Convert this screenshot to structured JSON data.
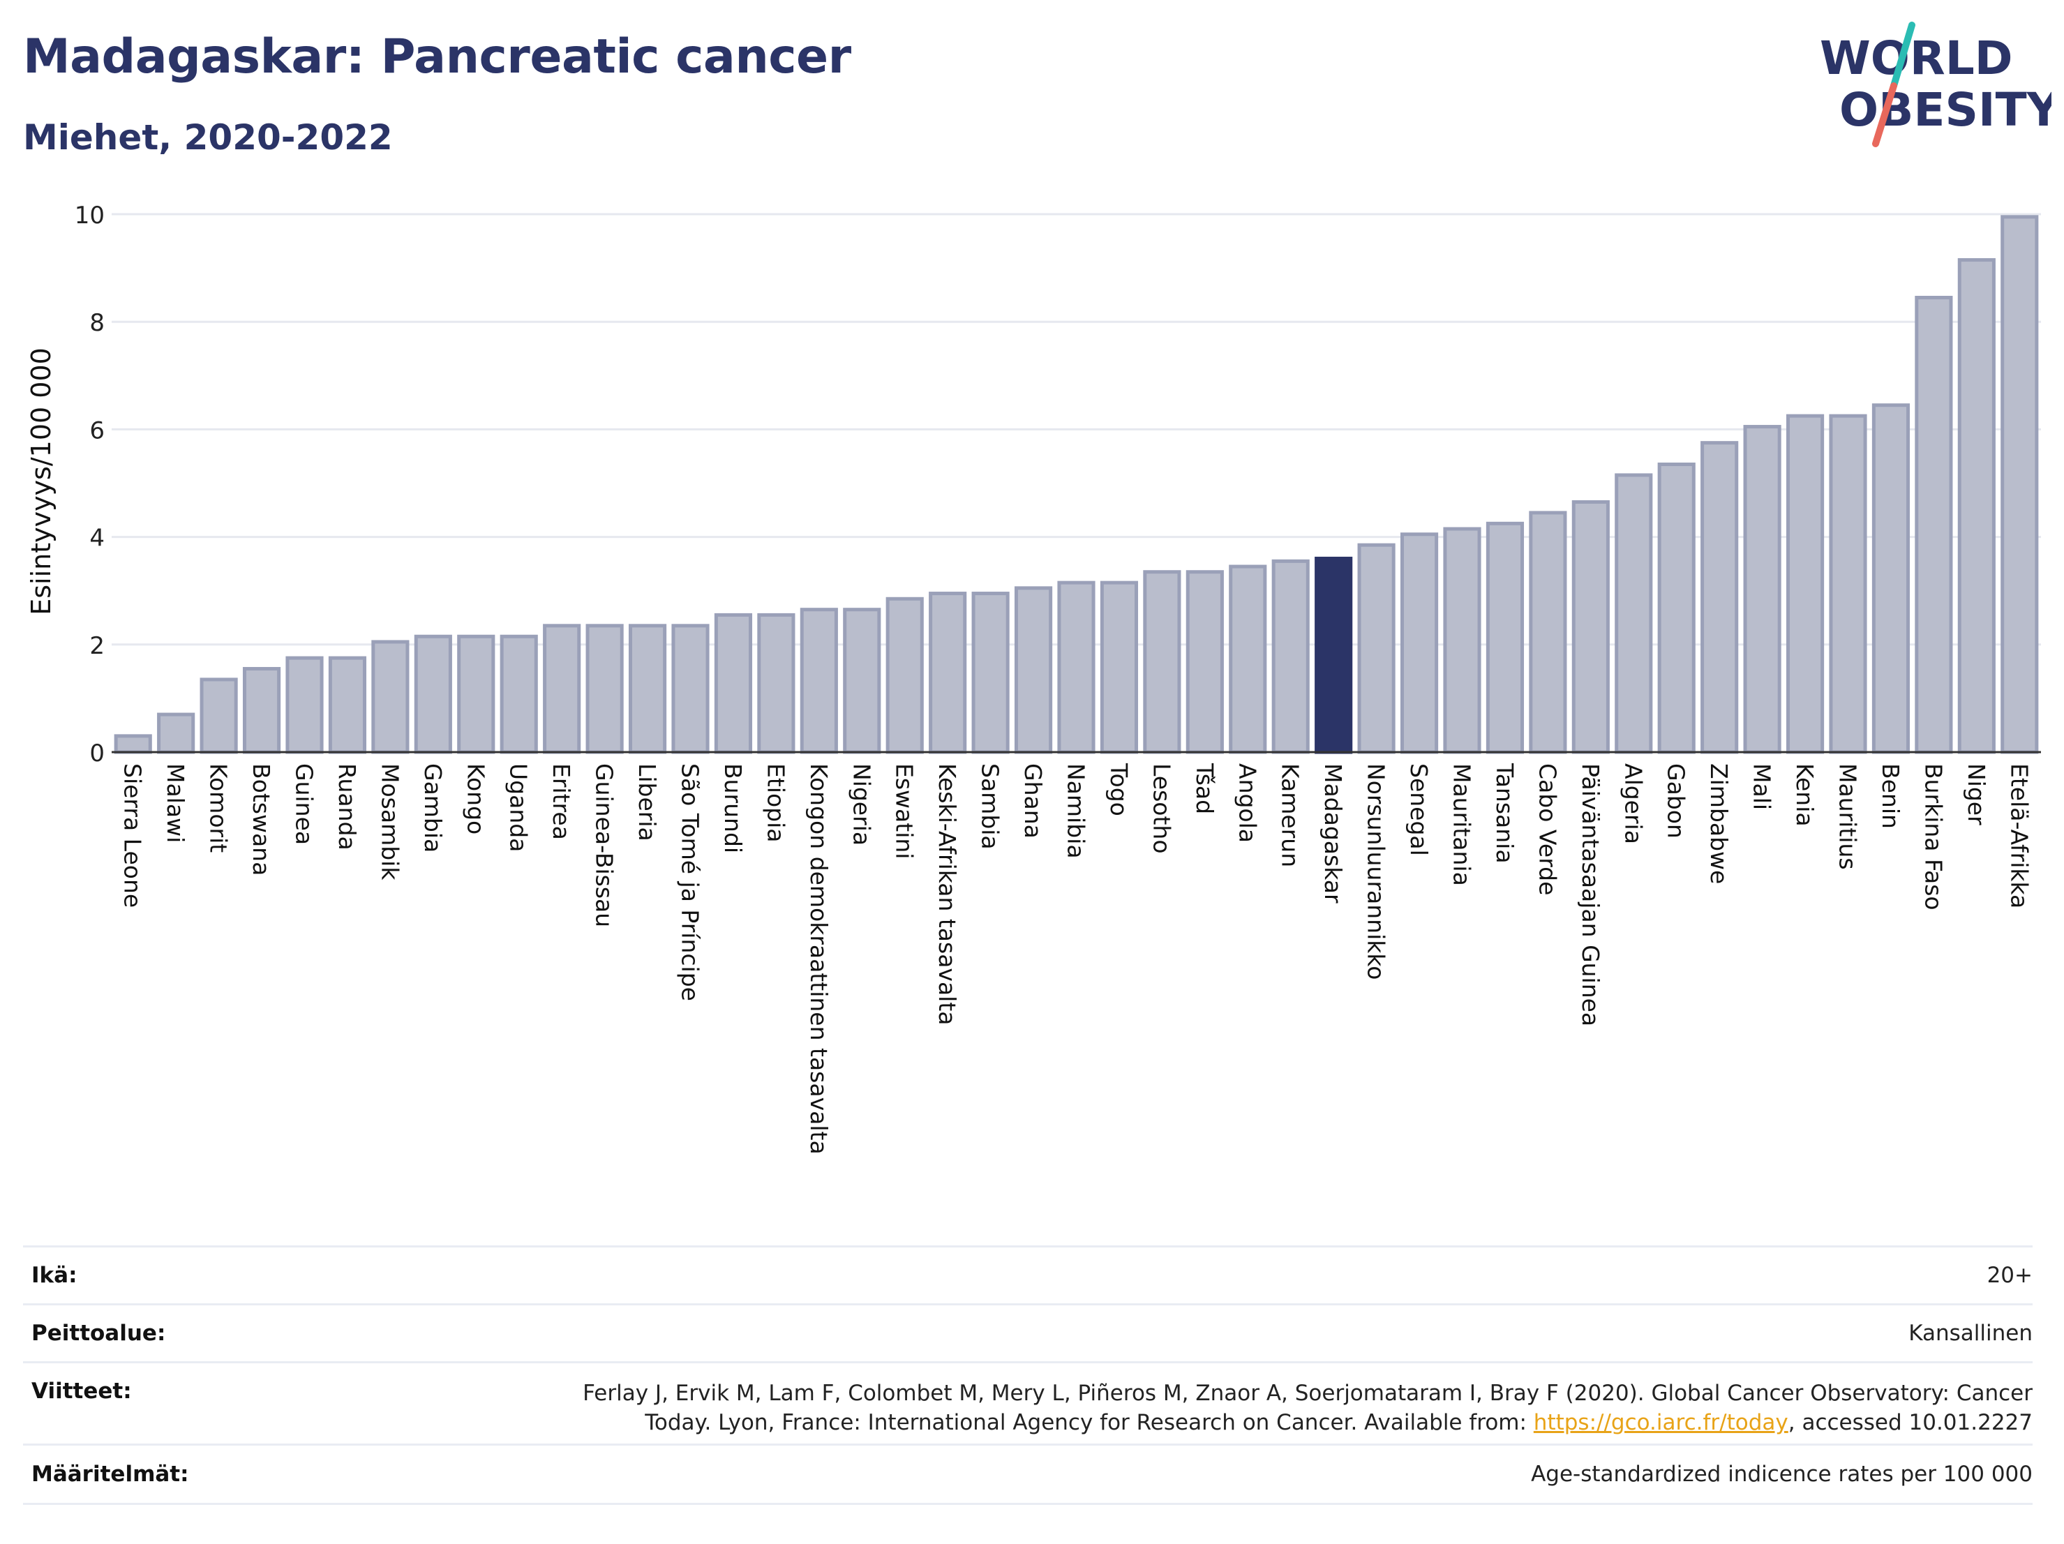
{
  "header": {
    "title": "Madagaskar: Pancreatic cancer",
    "subtitle": "Miehet, 2020-2022"
  },
  "logo": {
    "line1": "WORLD",
    "line2": "OBESITY",
    "colors": {
      "text": "#2b3467",
      "slash_top": "#2bbcb3",
      "slash_bottom": "#e8685c"
    }
  },
  "chart_data": {
    "type": "bar",
    "ylabel": "Esiintyvyys/100 000",
    "xlabel": "",
    "ylim": [
      0,
      10
    ],
    "yticks": [
      0,
      2,
      4,
      6,
      8,
      10
    ],
    "grid": true,
    "highlight": "Madagaskar",
    "colors": {
      "bar": "#b9bdcc",
      "bar_edge": "#9aa0b8",
      "highlight": "#2b3467",
      "grid": "#e6e8ef",
      "axis": "#333333"
    },
    "categories": [
      "Sierra Leone",
      "Malawi",
      "Komorit",
      "Botswana",
      "Guinea",
      "Ruanda",
      "Mosambik",
      "Gambia",
      "Kongo",
      "Uganda",
      "Eritrea",
      "Guinea-Bissau",
      "Liberia",
      "São Tomé ja Príncipe",
      "Burundi",
      "Etiopia",
      "Kongon demokraattinen tasavalta",
      "Nigeria",
      "Eswatini",
      "Keski-Afrikan tasavalta",
      "Sambia",
      "Ghana",
      "Namibia",
      "Togo",
      "Lesotho",
      "Tšad",
      "Angola",
      "Kamerun",
      "Madagaskar",
      "Norsunluurannikko",
      "Senegal",
      "Mauritania",
      "Tansania",
      "Cabo Verde",
      "Päiväntasaajan Guinea",
      "Algeria",
      "Gabon",
      "Zimbabwe",
      "Mali",
      "Kenia",
      "Mauritius",
      "Benin",
      "Burkina Faso",
      "Niger",
      "Etelä-Afrikka"
    ],
    "values": [
      0.3,
      0.7,
      1.35,
      1.55,
      1.75,
      1.75,
      2.05,
      2.15,
      2.15,
      2.15,
      2.35,
      2.35,
      2.35,
      2.35,
      2.55,
      2.55,
      2.65,
      2.65,
      2.85,
      2.95,
      2.95,
      3.05,
      3.15,
      3.15,
      3.35,
      3.35,
      3.45,
      3.55,
      3.6,
      3.85,
      4.05,
      4.15,
      4.25,
      4.45,
      4.65,
      5.15,
      5.35,
      5.75,
      6.05,
      6.25,
      6.25,
      6.45,
      8.45,
      9.15,
      9.95
    ]
  },
  "footer": {
    "age_label": "Ikä:",
    "age_value": "20+",
    "coverage_label": "Peittoalue:",
    "coverage_value": "Kansallinen",
    "refs_label": "Viitteet:",
    "refs_text_1": "Ferlay J, Ervik M, Lam F, Colombet M, Mery L, Piñeros M, Znaor A, Soerjomataram I, Bray F (2020). Global Cancer Observatory: Cancer",
    "refs_text_2": "Today. Lyon, France: International Agency for Research on Cancer. Available from: ",
    "refs_link": "https://gco.iarc.fr/today",
    "refs_text_3": ", accessed 10.01.2227",
    "defs_label": "Määritelmät:",
    "defs_value": "Age-standardized indicence rates per 100 000"
  }
}
